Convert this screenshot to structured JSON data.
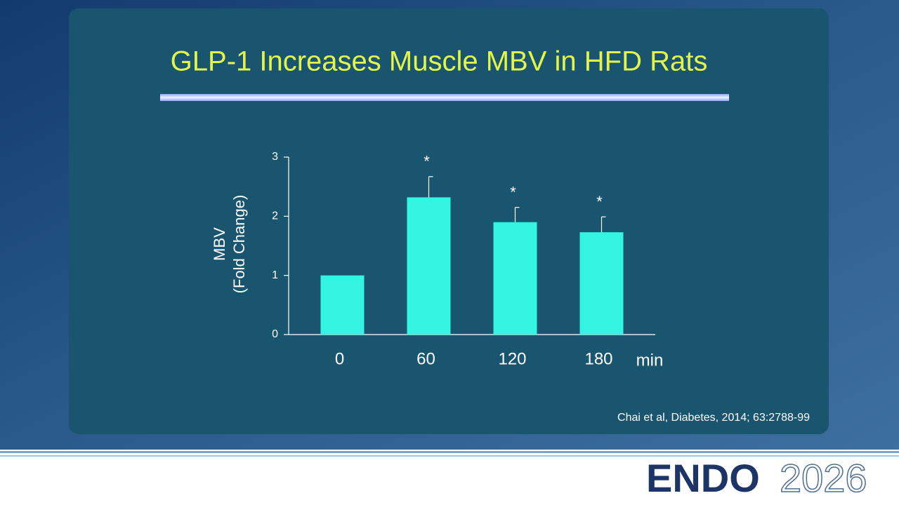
{
  "chart_data": {
    "type": "bar",
    "title": "GLP-1 Increases Muscle MBV in HFD Rats",
    "ylabel": [
      "MBV",
      "(Fold Change)"
    ],
    "xunit": "min",
    "categories": [
      "0",
      "60",
      "120",
      "180"
    ],
    "values": [
      1.0,
      2.32,
      1.9,
      1.73
    ],
    "errors": [
      null,
      0.35,
      0.25,
      0.26
    ],
    "significance": [
      null,
      "*",
      "*",
      "*"
    ],
    "color": "#33f5e1",
    "ylim": [
      0,
      3
    ],
    "yticks": [
      0,
      1,
      2,
      3
    ],
    "grid": false,
    "citation": "Chai et al, Diabetes, 2014; 63:2788-99"
  },
  "footer": {
    "logo": "ENDO",
    "year": "2026"
  }
}
